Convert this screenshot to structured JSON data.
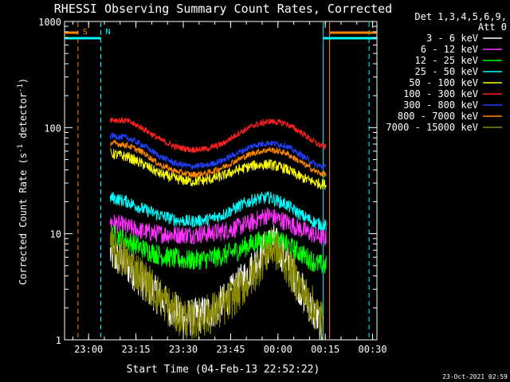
{
  "chart_data": {
    "type": "line",
    "title": "RHESSI Observing Summary Count Rates, Corrected",
    "xlabel": "Start Time (04-Feb-13 22:52:22)",
    "ylabel_prefix": "Corrected Count Rate (s",
    "ylabel_sup1": "-1",
    "ylabel_mid": " detector",
    "ylabel_sup2": "-1",
    "ylabel_suffix": ")",
    "yscale": "log",
    "ylim": [
      1,
      1000
    ],
    "x_unit": "minutes after 22:52:22",
    "xlim": [
      0,
      99
    ],
    "x_ticks": [
      {
        "label": "23:00",
        "value": 7.63
      },
      {
        "label": "23:15",
        "value": 22.63
      },
      {
        "label": "23:30",
        "value": 37.63
      },
      {
        "label": "23:45",
        "value": 52.63
      },
      {
        "label": "00:00",
        "value": 67.63
      },
      {
        "label": "00:15",
        "value": 82.63
      },
      {
        "label": "00:30",
        "value": 97.63
      }
    ],
    "y_ticks": [
      {
        "label": "1",
        "value": 1
      },
      {
        "label": "10",
        "value": 10
      },
      {
        "label": "100",
        "value": 100
      },
      {
        "label": "1000",
        "value": 1000
      }
    ],
    "legend": {
      "header1": "Det 1,3,4,5,6,9,",
      "header2": "Att 0",
      "placement": "right"
    },
    "series": [
      {
        "name": "3 - 6 keV",
        "color": "#ffffff",
        "x": [
          14.5,
          20,
          25,
          30,
          35,
          40,
          45,
          50,
          55,
          60,
          63,
          66,
          70,
          75,
          80,
          82
        ],
        "y": [
          6.5,
          5.0,
          3.5,
          2.5,
          1.8,
          1.6,
          1.8,
          2.2,
          3.2,
          5.0,
          7.0,
          8.5,
          6.0,
          3.0,
          1.6,
          1.2
        ]
      },
      {
        "name": "6 - 12 keV",
        "color": "#ff33ff",
        "x": [
          14.5,
          20,
          25,
          30,
          35,
          40,
          45,
          50,
          55,
          60,
          64,
          67,
          70,
          75,
          80,
          83
        ],
        "y": [
          13,
          11.5,
          10.5,
          10,
          9.8,
          9.8,
          10,
          10.5,
          11.5,
          13,
          15,
          14,
          13,
          11,
          9.5,
          9
        ]
      },
      {
        "name": "12 - 25 keV",
        "color": "#00ff00",
        "x": [
          14.5,
          20,
          25,
          30,
          35,
          40,
          45,
          50,
          55,
          60,
          65,
          70,
          75,
          80,
          83
        ],
        "y": [
          10,
          8.5,
          7.2,
          6.3,
          5.8,
          5.6,
          5.8,
          6.2,
          7.0,
          8.2,
          9.0,
          8.0,
          6.5,
          5.2,
          5.0
        ]
      },
      {
        "name": "25 - 50 keV",
        "color": "#00ffff",
        "x": [
          14.5,
          20,
          25,
          30,
          35,
          40,
          45,
          50,
          55,
          60,
          65,
          70,
          75,
          80,
          83
        ],
        "y": [
          22,
          20,
          17,
          15,
          13.5,
          13,
          13.5,
          15,
          18,
          21,
          22,
          19,
          15,
          12.5,
          12
        ]
      },
      {
        "name": "50 - 100 keV",
        "color": "#ffff00",
        "x": [
          14.5,
          20,
          25,
          30,
          35,
          40,
          45,
          50,
          55,
          60,
          65,
          70,
          75,
          80,
          83
        ],
        "y": [
          57,
          53,
          45,
          37,
          33,
          31,
          32,
          35,
          40,
          44,
          45,
          41,
          34,
          30,
          29
        ]
      },
      {
        "name": "100 - 300 keV",
        "color": "#ff2020",
        "x": [
          14.5,
          20,
          25,
          30,
          35,
          40,
          45,
          50,
          55,
          60,
          65,
          70,
          75,
          80,
          83
        ],
        "y": [
          120,
          115,
          98,
          78,
          66,
          62,
          63,
          70,
          88,
          105,
          115,
          110,
          90,
          70,
          65
        ]
      },
      {
        "name": "300 - 800 keV",
        "color": "#2040ff",
        "x": [
          14.5,
          20,
          25,
          30,
          35,
          40,
          45,
          50,
          55,
          60,
          65,
          70,
          75,
          80,
          83
        ],
        "y": [
          84,
          80,
          68,
          54,
          46,
          43,
          44,
          49,
          58,
          68,
          72,
          68,
          55,
          44,
          42
        ]
      },
      {
        "name": "800 - 7000 keV",
        "color": "#ff8800",
        "x": [
          14.5,
          20,
          25,
          30,
          35,
          40,
          45,
          50,
          55,
          60,
          65,
          70,
          75,
          80,
          83
        ],
        "y": [
          72,
          68,
          58,
          45,
          39,
          36,
          37,
          42,
          50,
          58,
          62,
          58,
          47,
          38,
          36
        ]
      },
      {
        "name": "7000 - 15000 keV",
        "color": "#888800",
        "x": [
          14.5,
          20,
          25,
          30,
          35,
          40,
          45,
          50,
          55,
          60,
          63,
          66,
          70,
          75,
          80,
          82
        ],
        "y": [
          7.5,
          5.5,
          3.8,
          2.6,
          1.8,
          1.5,
          1.7,
          2.0,
          2.8,
          4.2,
          6.0,
          7.5,
          5.5,
          3.0,
          1.8,
          1.5
        ]
      }
    ],
    "markers": [
      {
        "label": "S",
        "color": "#ff8800",
        "x": 4.25,
        "style": "dashed"
      },
      {
        "label": "N",
        "color": "#00ffff",
        "x": 11.5,
        "style": "dashed"
      },
      {
        "label": "",
        "color": "#00ffff",
        "x": 82.0,
        "style": "solid"
      },
      {
        "label": "",
        "color": "#ff8800",
        "x": 84.0,
        "style": "solid"
      },
      {
        "label": "",
        "color": "#00ffff",
        "x": 96.5,
        "style": "dashed"
      }
    ],
    "bars": [
      {
        "color": "#ff8800",
        "x0": 0,
        "x1": 4.25
      },
      {
        "color": "#00ffff",
        "x0": 0,
        "x1": 11.5
      },
      {
        "color": "#ff8800",
        "x0": 84.0,
        "x1": 99
      },
      {
        "color": "#00ffff",
        "x0": 82.0,
        "x1": 99
      }
    ],
    "timestamp": "23-Oct-2021 02:59"
  }
}
